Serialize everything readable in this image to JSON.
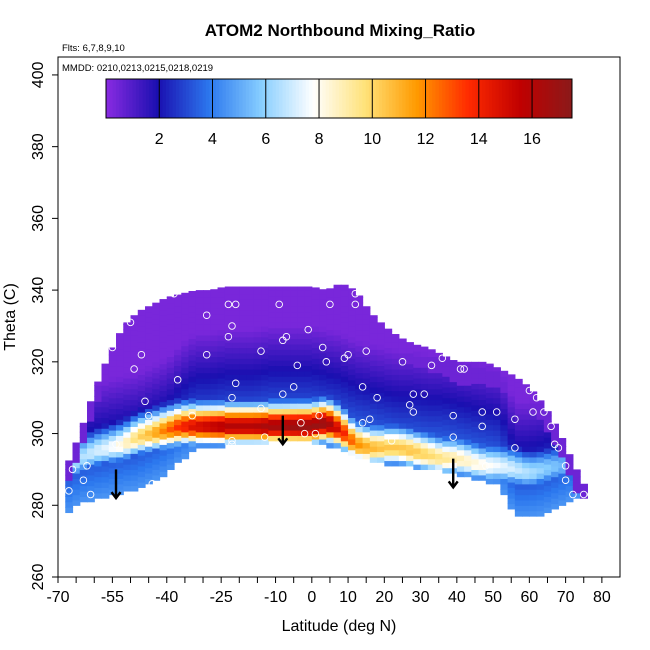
{
  "chart_data": {
    "type": "heatmap",
    "title": "ATOM2 Northbound Mixing_Ratio",
    "flights_note": "Flts: 6,7,8,9,10",
    "dates_note": "MMDD: 0210,0213,0215,0218,0219",
    "xlabel": "Latitude (deg N)",
    "ylabel": "Theta (C)",
    "xlim": [
      -70,
      85
    ],
    "ylim": [
      260,
      405
    ],
    "x_ticks": [
      -70,
      -55,
      -40,
      -25,
      -10,
      0,
      10,
      20,
      30,
      40,
      50,
      60,
      70,
      80
    ],
    "x_minor_ticks": [
      -65,
      -60,
      -50,
      -45,
      -35,
      -30,
      -20,
      -15,
      -5,
      5,
      15,
      25,
      35,
      45,
      55,
      65,
      75
    ],
    "y_ticks": [
      260,
      280,
      300,
      320,
      340,
      360,
      380,
      400
    ],
    "colorbar": {
      "ticks": [
        2,
        4,
        6,
        8,
        10,
        12,
        14,
        16
      ],
      "range": [
        0,
        17.5
      ],
      "colors": [
        "#8a2be2",
        "#1a0fb0",
        "#2c78ee",
        "#87ceff",
        "#ffffff",
        "#ffe27a",
        "#ff9a00",
        "#ff2a00",
        "#c00000",
        "#8b1a1a"
      ]
    },
    "field": {
      "lats": [
        -68,
        -64,
        -60,
        -56,
        -52,
        -48,
        -44,
        -40,
        -36,
        -32,
        -28,
        -24,
        -20,
        -16,
        -12,
        -8,
        -4,
        0,
        4,
        8,
        12,
        16,
        20,
        24,
        28,
        32,
        36,
        40,
        44,
        48,
        52,
        56,
        60,
        64,
        68,
        72,
        76
      ],
      "top": [
        290,
        300,
        312,
        322,
        330,
        334,
        336,
        338,
        339,
        340,
        340,
        341,
        341,
        341,
        341,
        341,
        341,
        341,
        340,
        342,
        340,
        334,
        330,
        327,
        325,
        324,
        322,
        320,
        320,
        320,
        318,
        316,
        313,
        308,
        301,
        292,
        284
      ],
      "bottom": [
        278,
        281,
        282,
        283,
        284,
        285,
        287,
        289,
        293,
        296,
        296,
        297,
        297,
        297,
        298,
        298,
        298,
        298,
        297,
        296,
        294,
        293,
        292,
        291,
        291,
        290,
        290,
        289,
        288,
        287,
        286,
        277,
        277,
        278,
        280,
        282,
        283
      ],
      "layer_center": [
        290,
        293,
        295,
        296,
        297,
        299,
        300,
        301,
        302,
        302,
        302,
        302,
        302,
        302,
        302,
        302,
        302,
        302,
        303,
        301,
        297,
        296,
        296,
        296,
        295,
        294,
        293,
        293,
        292,
        291,
        291,
        290,
        289,
        290,
        291,
        291,
        291
      ],
      "peak_value": [
        6,
        6.5,
        7,
        7.5,
        8.5,
        10,
        11,
        12.5,
        14,
        15,
        15.5,
        16,
        16,
        16,
        16.5,
        16.5,
        17,
        17,
        17,
        14.5,
        12,
        11,
        10.5,
        10.5,
        10.5,
        10,
        9.5,
        9,
        8.5,
        8,
        7.5,
        7,
        6.5,
        6,
        5.5,
        5,
        4.5
      ]
    },
    "arrows": [
      {
        "lat": -54,
        "theta_from": 290,
        "theta_to": 282
      },
      {
        "lat": -8,
        "theta_from": 305,
        "theta_to": 297
      },
      {
        "lat": 39,
        "theta_from": 293,
        "theta_to": 285
      }
    ],
    "samples": [
      {
        "lat": -67,
        "theta": 284
      },
      {
        "lat": -66,
        "theta": 290
      },
      {
        "lat": -63,
        "theta": 287
      },
      {
        "lat": -62,
        "theta": 291
      },
      {
        "lat": -61,
        "theta": 283
      },
      {
        "lat": -55,
        "theta": 324
      },
      {
        "lat": -54,
        "theta": 297
      },
      {
        "lat": -53,
        "theta": 331
      },
      {
        "lat": -50,
        "theta": 331
      },
      {
        "lat": -49,
        "theta": 318
      },
      {
        "lat": -47,
        "theta": 322
      },
      {
        "lat": -46,
        "theta": 309
      },
      {
        "lat": -45,
        "theta": 305
      },
      {
        "lat": -44,
        "theta": 286
      },
      {
        "lat": -38,
        "theta": 339
      },
      {
        "lat": -37,
        "theta": 315
      },
      {
        "lat": -33,
        "theta": 305
      },
      {
        "lat": -29,
        "theta": 333
      },
      {
        "lat": -29,
        "theta": 322
      },
      {
        "lat": -23,
        "theta": 336
      },
      {
        "lat": -23,
        "theta": 327
      },
      {
        "lat": -22,
        "theta": 330
      },
      {
        "lat": -21,
        "theta": 336
      },
      {
        "lat": -21,
        "theta": 314
      },
      {
        "lat": -22,
        "theta": 310
      },
      {
        "lat": -22,
        "theta": 298
      },
      {
        "lat": -22,
        "theta": 297
      },
      {
        "lat": -14,
        "theta": 323
      },
      {
        "lat": -14,
        "theta": 307
      },
      {
        "lat": -13,
        "theta": 299
      },
      {
        "lat": -9,
        "theta": 336
      },
      {
        "lat": -8,
        "theta": 326
      },
      {
        "lat": -7,
        "theta": 327
      },
      {
        "lat": -8,
        "theta": 311
      },
      {
        "lat": -5,
        "theta": 313
      },
      {
        "lat": -4,
        "theta": 319
      },
      {
        "lat": -3,
        "theta": 303
      },
      {
        "lat": -2,
        "theta": 300
      },
      {
        "lat": -1,
        "theta": 329
      },
      {
        "lat": 1,
        "theta": 300
      },
      {
        "lat": 2,
        "theta": 305
      },
      {
        "lat": 3,
        "theta": 324
      },
      {
        "lat": 4,
        "theta": 320
      },
      {
        "lat": 5,
        "theta": 336
      },
      {
        "lat": 6,
        "theta": 343
      },
      {
        "lat": 9,
        "theta": 321
      },
      {
        "lat": 10,
        "theta": 322
      },
      {
        "lat": 12,
        "theta": 339
      },
      {
        "lat": 12,
        "theta": 336
      },
      {
        "lat": 14,
        "theta": 303
      },
      {
        "lat": 14,
        "theta": 313
      },
      {
        "lat": 15,
        "theta": 323
      },
      {
        "lat": 16,
        "theta": 304
      },
      {
        "lat": 18,
        "theta": 310
      },
      {
        "lat": 22,
        "theta": 298
      },
      {
        "lat": 25,
        "theta": 320
      },
      {
        "lat": 27,
        "theta": 308
      },
      {
        "lat": 28,
        "theta": 311
      },
      {
        "lat": 28,
        "theta": 306
      },
      {
        "lat": 31,
        "theta": 311
      },
      {
        "lat": 33,
        "theta": 319
      },
      {
        "lat": 36,
        "theta": 321
      },
      {
        "lat": 39,
        "theta": 305
      },
      {
        "lat": 39,
        "theta": 299
      },
      {
        "lat": 41,
        "theta": 318
      },
      {
        "lat": 42,
        "theta": 318
      },
      {
        "lat": 45,
        "theta": 323
      },
      {
        "lat": 47,
        "theta": 302
      },
      {
        "lat": 47,
        "theta": 306
      },
      {
        "lat": 48,
        "theta": 291
      },
      {
        "lat": 51,
        "theta": 306
      },
      {
        "lat": 51,
        "theta": 283
      },
      {
        "lat": 53,
        "theta": 319
      },
      {
        "lat": 54,
        "theta": 323
      },
      {
        "lat": 56,
        "theta": 304
      },
      {
        "lat": 56,
        "theta": 296
      },
      {
        "lat": 59,
        "theta": 316
      },
      {
        "lat": 60,
        "theta": 312
      },
      {
        "lat": 61,
        "theta": 306
      },
      {
        "lat": 62,
        "theta": 310
      },
      {
        "lat": 64,
        "theta": 306
      },
      {
        "lat": 66,
        "theta": 311
      },
      {
        "lat": 66,
        "theta": 302
      },
      {
        "lat": 67,
        "theta": 297
      },
      {
        "lat": 68,
        "theta": 296
      },
      {
        "lat": 70,
        "theta": 287
      },
      {
        "lat": 70,
        "theta": 291
      },
      {
        "lat": 72,
        "theta": 283
      },
      {
        "lat": 75,
        "theta": 283
      },
      {
        "lat": 77,
        "theta": 283
      }
    ]
  }
}
